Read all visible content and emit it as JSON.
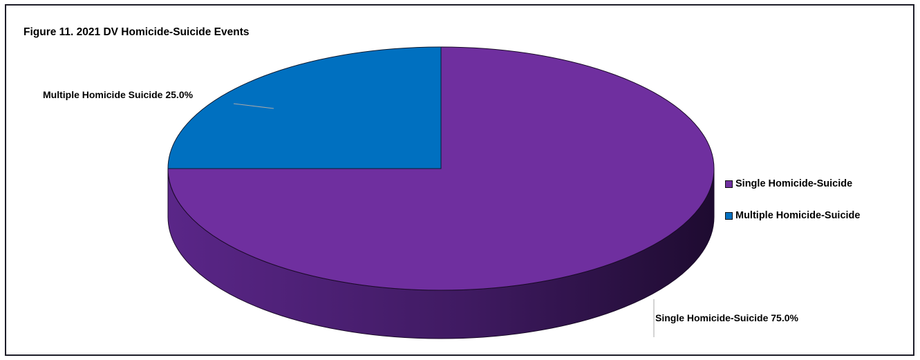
{
  "chart_data": {
    "type": "pie",
    "title": "Figure 11. 2021 DV Homicide-Suicide Events",
    "categories": [
      "Single Homicide-Suicide",
      "Multiple Homicide-Suicide"
    ],
    "values": [
      75.0,
      25.0
    ],
    "unit": "%",
    "data_labels": [
      "Single Homicide-Suicide 75.0%",
      "Multiple Homicide Suicide 25.0%"
    ],
    "colors": [
      "#6f2f9f",
      "#0070c0"
    ],
    "legend_position": "right",
    "style": "3d"
  }
}
